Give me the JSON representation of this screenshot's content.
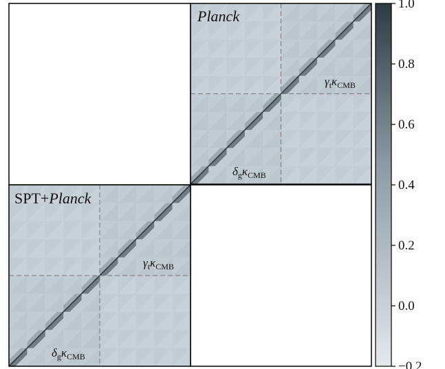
{
  "chart_data": [
    {
      "type": "heatmap",
      "title": "Planck",
      "position": "top-right",
      "blocks": [
        "δ_g κ_CMB",
        "γ_t κ_CMB"
      ],
      "block_labels": [
        {
          "base": "δ",
          "sub": "g",
          "kappa": "κ",
          "kappa_sub": "CMB"
        },
        {
          "base": "γ",
          "sub": "t",
          "kappa": "κ",
          "kappa_sub": "CMB"
        }
      ],
      "bins_per_block": 5,
      "diagonal_value": 1.0,
      "off_diagonal_typical": 0.0,
      "divider_style": "dashed"
    },
    {
      "type": "heatmap",
      "title": "SPT+Planck",
      "title_parts": {
        "plain": "SPT+",
        "italic": "Planck"
      },
      "position": "bottom-left",
      "blocks": [
        "δ_g κ_CMB",
        "γ_t κ_CMB"
      ],
      "block_labels": [
        {
          "base": "δ",
          "sub": "g",
          "kappa": "κ",
          "kappa_sub": "CMB"
        },
        {
          "base": "γ",
          "sub": "t",
          "kappa": "κ",
          "kappa_sub": "CMB"
        }
      ],
      "bins_per_block": 5,
      "diagonal_value": 1.0,
      "off_diagonal_typical": 0.0,
      "divider_style": "dashed"
    }
  ],
  "colorbar": {
    "min": -0.2,
    "max": 1.0,
    "ticks": [
      -0.2,
      0.0,
      0.2,
      0.4,
      0.6,
      0.8,
      1.0
    ],
    "tick_labels": [
      "−0.2",
      "0.0",
      "0.2",
      "0.4",
      "0.6",
      "0.8",
      "1.0"
    ],
    "color_low": "#e6e9ec",
    "color_mid": "#c2cdd3",
    "color_high": "#2e3b42"
  }
}
